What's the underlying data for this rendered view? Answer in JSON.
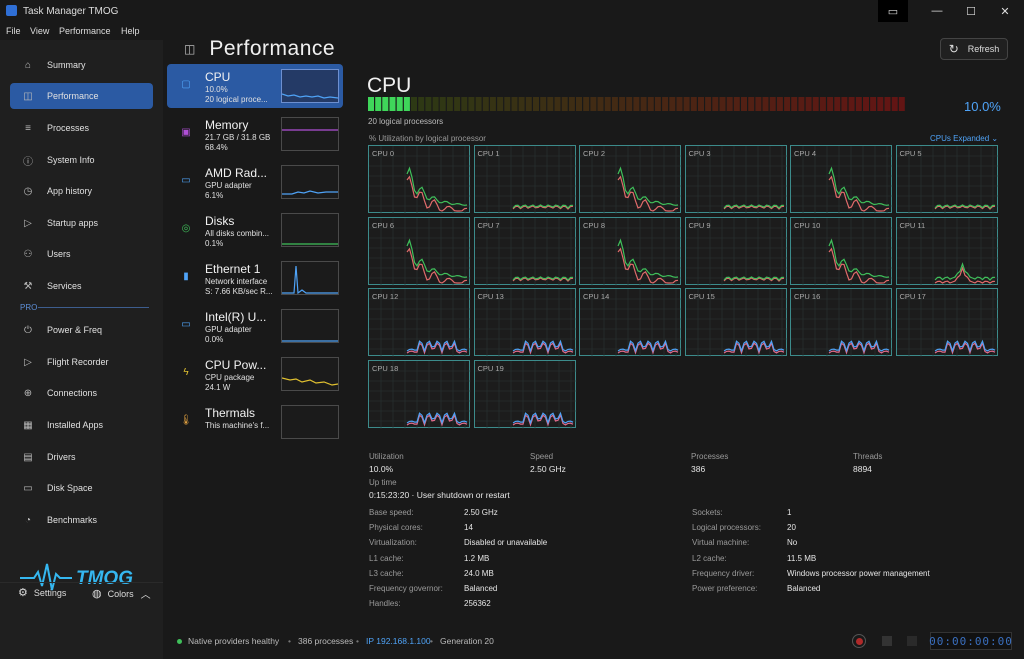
{
  "window": {
    "title": "Task Manager TMOG"
  },
  "menu": [
    "File",
    "View",
    "Performance",
    "Help"
  ],
  "sidebar": {
    "items": [
      {
        "label": "Summary",
        "icon": "home-icon",
        "active": false
      },
      {
        "label": "Performance",
        "icon": "chart-icon",
        "active": true
      },
      {
        "label": "Processes",
        "icon": "list-icon",
        "active": false
      },
      {
        "label": "System Info",
        "icon": "info-icon",
        "active": false
      },
      {
        "label": "App history",
        "icon": "history-icon",
        "active": false
      },
      {
        "label": "Startup apps",
        "icon": "startup-icon",
        "active": false
      },
      {
        "label": "Users",
        "icon": "users-icon",
        "active": false
      },
      {
        "label": "Services",
        "icon": "wrench-icon",
        "active": false
      }
    ],
    "pro_label": "PRO",
    "pro_items": [
      {
        "label": "Power & Freq",
        "icon": "power-icon"
      },
      {
        "label": "Flight Recorder",
        "icon": "recorder-icon"
      },
      {
        "label": "Connections",
        "icon": "globe-icon"
      },
      {
        "label": "Installed Apps",
        "icon": "apps-icon"
      },
      {
        "label": "Drivers",
        "icon": "driver-icon"
      },
      {
        "label": "Disk Space",
        "icon": "disk-icon"
      },
      {
        "label": "Benchmarks",
        "icon": "gauge-icon"
      }
    ],
    "logo_text": "TMOG",
    "settings_label": "Settings",
    "colors_label": "Colors"
  },
  "page": {
    "title": "Performance",
    "refresh_label": "Refresh"
  },
  "devices": [
    {
      "name": "CPU",
      "line1": "10.0%",
      "line2": "20 logical proce...",
      "icon": "cpu-icon",
      "selected": true,
      "color": "#4fa3f7"
    },
    {
      "name": "Memory",
      "line1": "21.7 GB / 31.8 GB",
      "line2": "68.4%",
      "icon": "memory-icon",
      "selected": false,
      "color": "#b04fd6"
    },
    {
      "name": "AMD Rad...",
      "line1": "GPU adapter",
      "line2": "6.1%",
      "icon": "monitor-icon",
      "selected": false,
      "color": "#4fa3f7"
    },
    {
      "name": "Disks",
      "line1": "All disks combin...",
      "line2": "0.1%",
      "icon": "disk-icon",
      "selected": false,
      "color": "#3fbf5a"
    },
    {
      "name": "Ethernet 1",
      "line1": "Network interface",
      "line2": "S: 7.66 KB/sec  R...",
      "icon": "ethernet-icon",
      "selected": false,
      "color": "#4fa3f7"
    },
    {
      "name": "Intel(R) U...",
      "line1": "GPU adapter",
      "line2": "0.0%",
      "icon": "monitor-icon",
      "selected": false,
      "color": "#4fa3f7"
    },
    {
      "name": "CPU Pow...",
      "line1": "CPU package",
      "line2": "24.1 W",
      "icon": "lightning-icon",
      "selected": false,
      "color": "#e0c030"
    },
    {
      "name": "Thermals",
      "line1": "This machine's f...",
      "line2": "",
      "icon": "thermometer-icon",
      "selected": false,
      "color": "#e0a040"
    }
  ],
  "cpu": {
    "title": "CPU",
    "subtitle": "20 logical processors",
    "utilization_pct": "10.0%",
    "utilization_fraction": 0.1,
    "utilization_label": "% Utilization by logical processor",
    "expanded_label": "CPUs Expanded",
    "cores": [
      "CPU 0",
      "CPU 1",
      "CPU 2",
      "CPU 3",
      "CPU 4",
      "CPU 5",
      "CPU 6",
      "CPU 7",
      "CPU 8",
      "CPU 9",
      "CPU 10",
      "CPU 11",
      "CPU 12",
      "CPU 13",
      "CPU 14",
      "CPU 15",
      "CPU 16",
      "CPU 17",
      "CPU 18",
      "CPU 19"
    ]
  },
  "stats": [
    {
      "label": "Utilization",
      "value": "10.0%"
    },
    {
      "label": "Speed",
      "value": "2.50 GHz"
    },
    {
      "label": "Processes",
      "value": "386"
    },
    {
      "label": "Threads",
      "value": "8894"
    }
  ],
  "uptime": {
    "label": "Up time",
    "value": "0:15:23:20 · User shutdown or restart"
  },
  "details_left": [
    {
      "k": "Base speed:",
      "v": "2.50 GHz"
    },
    {
      "k": "Physical cores:",
      "v": "14"
    },
    {
      "k": "Virtualization:",
      "v": "Disabled or unavailable"
    },
    {
      "k": "L1 cache:",
      "v": "1.2 MB"
    },
    {
      "k": "L3 cache:",
      "v": "24.0 MB"
    },
    {
      "k": "Frequency governor:",
      "v": "Balanced"
    },
    {
      "k": "Handles:",
      "v": "256362"
    }
  ],
  "details_right": [
    {
      "k": "Sockets:",
      "v": "1"
    },
    {
      "k": "Logical processors:",
      "v": "20"
    },
    {
      "k": "Virtual machine:",
      "v": "No"
    },
    {
      "k": "L2 cache:",
      "v": "11.5 MB"
    },
    {
      "k": "Frequency driver:",
      "v": "Windows processor power management"
    },
    {
      "k": "Power preference:",
      "v": "Balanced"
    }
  ],
  "status": {
    "health": "Native providers healthy",
    "processes": "386 processes",
    "ip": "IP 192.168.1.100",
    "generation": "Generation 20",
    "timer": "00:00:00:00"
  },
  "colors": {
    "accent": "#2b5aa3",
    "link": "#4fa3f7",
    "grid": "#3c8b8b"
  }
}
